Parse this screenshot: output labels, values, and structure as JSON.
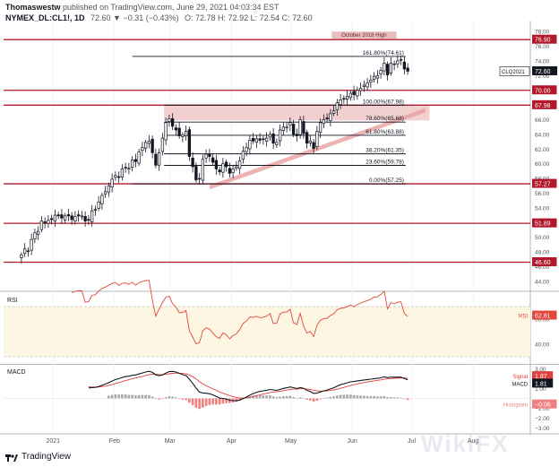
{
  "header": {
    "author": "Thomaswestw",
    "published": "published on TradingView.com, June 29, 2021 04:03:34 EST",
    "symbol": "NYMEX_DL:CL1!, 1D",
    "change": "72.60 ▼ −0.31 (−0.43%)",
    "ohlc": "O: 72.78 H: 72.92 L: 72.54 C: 72.60"
  },
  "footer": {
    "brand": "TradingView",
    "watermark": "WikiFX"
  },
  "chart_data": [
    {
      "type": "candlestick",
      "pane": "price",
      "y_ticks": [
        44,
        46,
        48,
        50,
        52,
        54,
        56,
        58,
        60,
        62,
        64,
        66,
        68,
        70,
        72,
        74,
        76,
        78
      ],
      "ylim": [
        43,
        79
      ],
      "x_ticks": [
        "2021",
        "Feb",
        "Mar",
        "Apr",
        "May",
        "Jun",
        "Jul",
        "Aug"
      ],
      "x_tick_days": [
        0,
        31,
        59,
        90,
        120,
        151,
        181,
        212
      ],
      "xlim": [
        -25,
        240
      ],
      "closes": [
        47.6,
        48.4,
        48.1,
        49.7,
        50.6,
        50.8,
        52.2,
        52.0,
        52.3,
        52.4,
        53.0,
        52.9,
        52.6,
        52.9,
        52.9,
        52.4,
        52.8,
        52.9,
        52.9,
        52.2,
        52.3,
        53.6,
        53.8,
        54.8,
        55.7,
        56.2,
        57.0,
        57.9,
        58.4,
        58.2,
        59.3,
        59.5,
        59.4,
        60.5,
        60.3,
        61.6,
        62.2,
        62.9,
        63.1,
        61.5,
        59.8,
        61.5,
        63.5,
        65.6,
        66.1,
        65.1,
        64.6,
        63.8,
        63.9,
        64.4,
        61.0,
        59.6,
        57.8,
        58.0,
        60.6,
        61.3,
        61.0,
        60.2,
        59.3,
        58.9,
        60.0,
        59.6,
        58.7,
        59.3,
        59.6,
        60.4,
        61.7,
        62.2,
        63.2,
        63.1,
        63.4,
        63.2,
        63.3,
        63.5,
        64.0,
        62.8,
        62.9,
        64.6,
        65.0,
        65.0,
        65.6,
        64.0,
        63.8,
        66.0,
        64.1,
        62.8,
        63.1,
        62.1,
        64.4,
        65.6,
        66.0,
        66.1,
        66.8,
        67.2,
        68.3,
        68.7,
        68.8,
        69.2,
        69.6,
        69.4,
        70.0,
        70.3,
        70.7,
        71.0,
        71.4,
        71.9,
        72.0,
        72.7,
        73.7,
        72.1,
        73.7,
        73.6,
        74.0,
        74.1,
        72.9,
        72.6
      ],
      "annotations": [
        {
          "label": "October 2018 High",
          "value": 76.9
        }
      ]
    },
    {
      "type": "line",
      "name": "Horizontal levels",
      "levels": [
        76.9,
        70.0,
        67.98,
        57.27,
        51.89,
        46.6
      ],
      "last_price": {
        "label": "CLQ2021",
        "value": "72.60"
      }
    },
    {
      "type": "line",
      "name": "Fibonacci retracement",
      "levels": [
        {
          "label": "161.80%(74.61)",
          "value": 74.61
        },
        {
          "label": "100.00%(67.98)",
          "value": 67.98
        },
        {
          "label": "78.60%(65.68)",
          "value": 65.68
        },
        {
          "label": "61.80%(63.88)",
          "value": 63.88
        },
        {
          "label": "38.20%(61.35)",
          "value": 61.35
        },
        {
          "label": "23.60%(59.78)",
          "value": 59.78
        },
        {
          "label": "0.00%(57.25)",
          "value": 57.25
        }
      ]
    },
    {
      "type": "line",
      "pane": "rsi",
      "title": "RSI",
      "y_ticks": [
        40,
        60
      ],
      "ylim": [
        25,
        80
      ],
      "band": [
        30,
        70
      ],
      "last": {
        "label": "RSI",
        "value": "62.81"
      }
    },
    {
      "type": "line",
      "pane": "macd",
      "title": "MACD",
      "y_ticks": [
        -3,
        -2,
        -1,
        1,
        2,
        3
      ],
      "y_tick_labels": [
        "−3.00",
        "−2.00",
        "−1.00",
        "1.00",
        "2.00",
        "3.00"
      ],
      "ylim": [
        -3.3,
        3.3
      ],
      "last": [
        {
          "label": "Signal",
          "value": "1.87"
        },
        {
          "label": "MACD",
          "value": "1.81"
        },
        {
          "label": "Histogram",
          "value": "−0.06"
        }
      ]
    }
  ],
  "colors": {
    "red_line": "#b2182b",
    "fib_line": "#131722",
    "zone": "#f0c8c8",
    "trend": "#e8a0a0",
    "rsi_line": "#e0473a",
    "rsi_band": "#fdf6e3",
    "macd_line": "#131722",
    "signal_line": "#e04040",
    "hist_pos": "#a8a8a8",
    "hist_neg": "#f08080",
    "bg": "#ffffff"
  }
}
